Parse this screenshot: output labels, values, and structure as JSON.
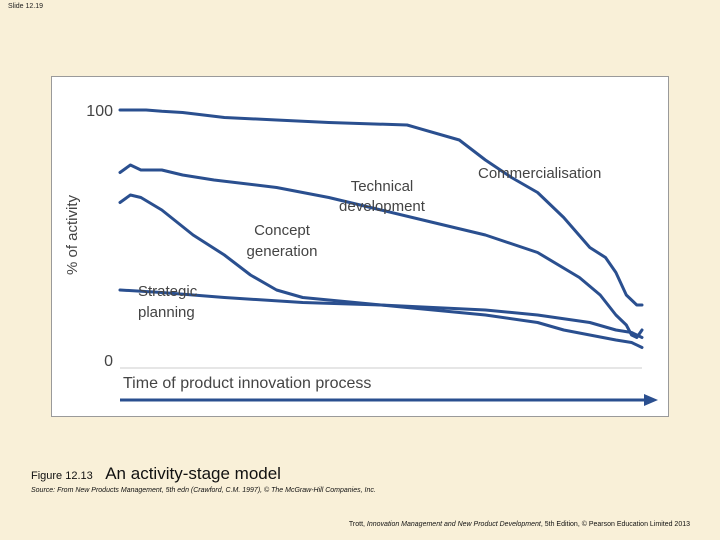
{
  "slide": {
    "number": "Slide 12.19"
  },
  "figure": {
    "number": "Figure 12.13",
    "title": "An activity-stage model",
    "source": "Source: From New Products Management, 5th edn (Crawford, C.M. 1997), © The McGraw-Hill Companies, Inc.",
    "credit_author": "Trott,",
    "credit_title": "Innovation Management and New Product Development",
    "credit_rest": ", 5th Edition, © Pearson Education Limited 2013"
  },
  "colors": {
    "background": "#f9f0d8",
    "line": "#2a4f8f",
    "label": "#444444"
  },
  "chart_data": {
    "type": "line",
    "title": "",
    "xlabel": "Time of product innovation process",
    "ylabel": "% of activity",
    "ylim": [
      0,
      100
    ],
    "x_range": [
      0,
      100
    ],
    "yticks": [
      0,
      100
    ],
    "y_tick_labels": [
      "0",
      "100"
    ],
    "grid": false,
    "legend": "none",
    "series": [
      {
        "name": "Commercialisation",
        "x": [
          0,
          5,
          8,
          12,
          20,
          30,
          40,
          55,
          65,
          70,
          75,
          80,
          85,
          90,
          93,
          95,
          97,
          99,
          100
        ],
        "y": [
          100,
          100,
          99.5,
          99,
          97,
          96,
          95,
          94,
          88,
          80,
          73,
          67,
          57,
          45,
          41,
          35,
          26,
          22,
          22
        ]
      },
      {
        "name": "Technical development",
        "x": [
          0,
          2,
          4,
          8,
          12,
          18,
          30,
          40,
          50,
          60,
          70,
          80,
          88,
          92,
          95,
          97,
          98,
          99,
          100
        ],
        "y": [
          75,
          78,
          76,
          76,
          74,
          72,
          69,
          65,
          60,
          55,
          50,
          43,
          33,
          26,
          18,
          14,
          10,
          9,
          12
        ]
      },
      {
        "name": "Concept generation",
        "x": [
          0,
          2,
          4,
          8,
          14,
          20,
          25,
          30,
          35,
          40,
          45,
          50,
          60,
          70,
          80,
          90,
          95,
          98,
          100
        ],
        "y": [
          63,
          66,
          65,
          60,
          50,
          42,
          34,
          28,
          25,
          24,
          23,
          22,
          21,
          20,
          18,
          15,
          12,
          11,
          9
        ]
      },
      {
        "name": "Strategic planning",
        "x": [
          0,
          8,
          20,
          35,
          50,
          60,
          70,
          80,
          85,
          90,
          95,
          98,
          100
        ],
        "y": [
          28,
          27,
          25,
          23,
          22,
          20,
          18,
          15,
          12,
          10,
          8,
          7,
          5
        ]
      }
    ]
  }
}
